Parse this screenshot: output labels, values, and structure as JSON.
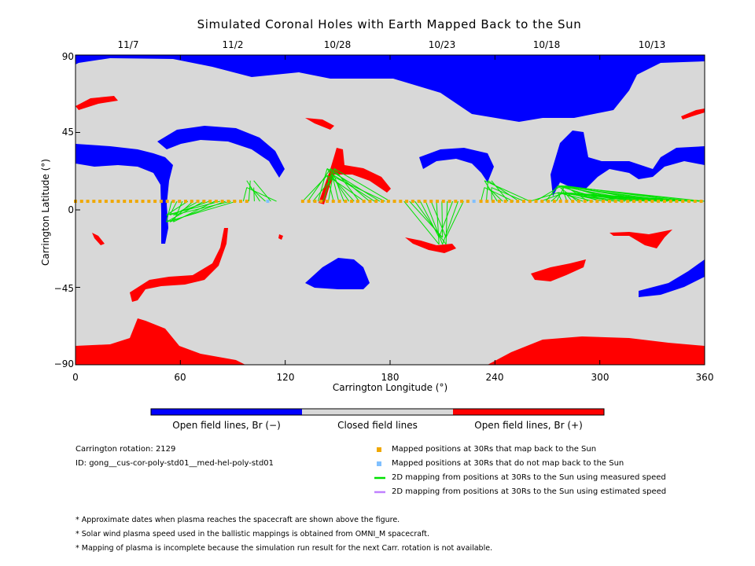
{
  "chart_data": {
    "type": "map",
    "title": "Simulated Coronal Holes with Earth Mapped Back to the Sun",
    "xlabel": "Carrington Longitude (°)",
    "ylabel": "Carrington Latitude (°)",
    "xlim": [
      0,
      360
    ],
    "ylim": [
      -90,
      90
    ],
    "x_ticks": [
      "0",
      "60",
      "120",
      "180",
      "240",
      "300",
      "360"
    ],
    "y_ticks": [
      "90",
      "45",
      "0",
      "−45",
      "−90"
    ],
    "top_axis_dates": [
      "11/7",
      "11/2",
      "10/28",
      "10/23",
      "10/18",
      "10/13"
    ],
    "colorbar": [
      {
        "label": "Open field lines, Br (−)",
        "color": "#0000ff"
      },
      {
        "label": "Closed field lines",
        "color": "#d8d8d8"
      },
      {
        "label": "Open field lines, Br (+)",
        "color": "#ff0000"
      }
    ],
    "mapped_points": {
      "latitude": 5,
      "lon_ranges_orange": [
        [
          0,
          100
        ],
        [
          130,
          225
        ],
        [
          232,
          360
        ]
      ],
      "lon_blue": [
        110,
        228
      ]
    },
    "footpoint_clusters": [
      {
        "from": [
          55,
          92
        ],
        "to_lon": 54,
        "to_lat": -5
      },
      {
        "from": [
          96,
          115
        ],
        "to_lon": 100,
        "to_lat": 15
      },
      {
        "from": [
          130,
          180
        ],
        "to_lon": 146,
        "to_lat": 22
      },
      {
        "from": [
          188,
          222
        ],
        "to_lon": 210,
        "to_lat": -18
      },
      {
        "from": [
          232,
          260
        ],
        "to_lon": 236,
        "to_lat": 15
      },
      {
        "from": [
          260,
          360
        ],
        "to_lon": 278,
        "to_lat": 12
      }
    ]
  },
  "info": {
    "rotation": "Carrington rotation: 2129",
    "id": "ID: gong__cus-cor-poly-std01__med-hel-poly-std01"
  },
  "legend": [
    {
      "label": "Mapped positions at 30Rs that map back to the Sun",
      "color": "#f0a800",
      "kind": "square"
    },
    {
      "label": "Mapped positions at 30Rs that do not map back to the Sun",
      "color": "#80c0ff",
      "kind": "square"
    },
    {
      "label": "2D mapping from positions at 30Rs to the Sun using measured speed",
      "color": "#00e000",
      "kind": "line"
    },
    {
      "label": "2D mapping from positions at 30Rs to the Sun using estimated speed",
      "color": "#c080ff",
      "kind": "line"
    }
  ],
  "notes": [
    "* Approximate dates when plasma reaches the spacecraft are shown above the figure.",
    "* Solar wind plasma speed used in the ballistic mappings is obtained from OMNI_M spacecraft.",
    "* Mapping of plasma is incomplete because the simulation run result for the next Carr. rotation is not available."
  ],
  "colors": {
    "closed": "#d8d8d8",
    "negative": "#0000ff",
    "positive": "#ff0000",
    "mapped": "#f0a800",
    "unmapped": "#80c0ff",
    "measured": "#00e000"
  }
}
